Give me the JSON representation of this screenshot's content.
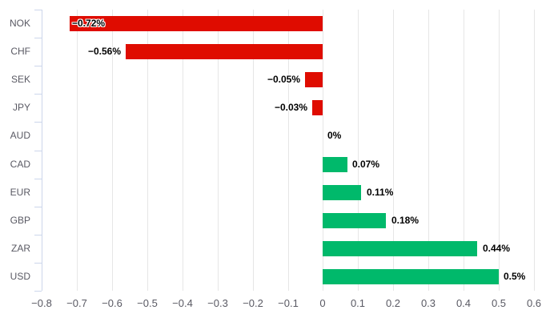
{
  "chart_data": {
    "type": "bar",
    "orientation": "horizontal",
    "title": "",
    "xlabel": "",
    "ylabel": "",
    "grid": "vertical",
    "legend_position": "none",
    "categories": [
      "NOK",
      "CHF",
      "SEK",
      "JPY",
      "AUD",
      "CAD",
      "EUR",
      "GBP",
      "ZAR",
      "USD"
    ],
    "values": [
      -0.72,
      -0.56,
      -0.05,
      -0.03,
      0,
      0.07,
      0.11,
      0.18,
      0.44,
      0.5
    ],
    "value_labels": [
      "−0.72%",
      "−0.56%",
      "−0.05%",
      "−0.03%",
      "0%",
      "0.07%",
      "0.11%",
      "0.18%",
      "0.44%",
      "0.5%"
    ],
    "xlim": [
      -0.8,
      0.6
    ],
    "x_ticks": [
      -0.8,
      -0.7,
      -0.6,
      -0.5,
      -0.4,
      -0.3,
      -0.2,
      -0.1,
      0,
      0.1,
      0.2,
      0.3,
      0.4,
      0.5,
      0.6
    ],
    "x_tick_labels": [
      "−0.8",
      "−0.7",
      "−0.6",
      "−0.5",
      "−0.4",
      "−0.3",
      "−0.2",
      "−0.1",
      "0",
      "0.1",
      "0.2",
      "0.3",
      "0.4",
      "0.5",
      "0.6"
    ],
    "colors": {
      "negative_bar": "#df0c00",
      "positive_bar": "#00b96b",
      "gridline": "#e6e6e6",
      "axis_line": "#ccd6eb",
      "tick_label": "#595963",
      "data_label": "#000000",
      "background": "#ffffff"
    }
  }
}
